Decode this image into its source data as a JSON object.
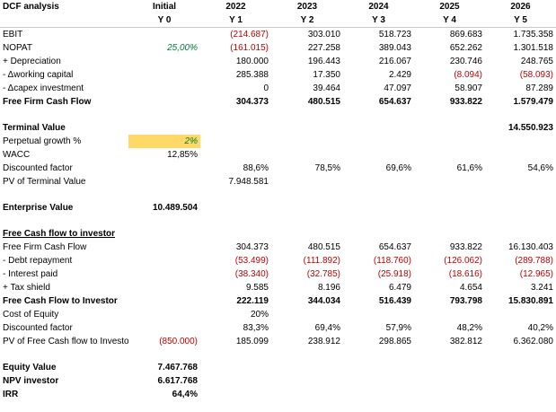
{
  "header": {
    "title": "DCF analysis",
    "cols": [
      {
        "top": "Initial",
        "bottom": "Y 0"
      },
      {
        "top": "2022",
        "bottom": "Y 1"
      },
      {
        "top": "2023",
        "bottom": "Y 2"
      },
      {
        "top": "2024",
        "bottom": "Y 3"
      },
      {
        "top": "2025",
        "bottom": "Y 4"
      },
      {
        "top": "2026",
        "bottom": "Y 5"
      }
    ]
  },
  "rows": {
    "ebit": {
      "label": "EBIT",
      "v": [
        "",
        "(214.687)",
        "303.010",
        "518.723",
        "869.683",
        "1.735.358"
      ]
    },
    "nopat": {
      "label": "NOPAT",
      "v": [
        "25,00%",
        "(161.015)",
        "227.258",
        "389.043",
        "652.262",
        "1.301.518"
      ]
    },
    "dep": {
      "label": " + Depreciation",
      "v": [
        "",
        "180.000",
        "196.443",
        "216.067",
        "230.746",
        "248.765"
      ]
    },
    "wc": {
      "label": " - Δworking capital",
      "v": [
        "",
        "285.388",
        "17.350",
        "2.429",
        "(8.094)",
        "(58.093)"
      ]
    },
    "capex": {
      "label": " - Δcapex investment",
      "v": [
        "",
        "0",
        "39.464",
        "47.097",
        "58.907",
        "87.289"
      ]
    },
    "ffcf": {
      "label": "Free Firm Cash Flow",
      "v": [
        "",
        "304.373",
        "480.515",
        "654.637",
        "933.822",
        "1.579.479"
      ]
    },
    "tv": {
      "label": "Terminal Value",
      "v": [
        "",
        "",
        "",
        "",
        "",
        "14.550.923"
      ]
    },
    "pg": {
      "label": "Perpetual growth %",
      "v": [
        "2%",
        "",
        "",
        "",
        "",
        ""
      ]
    },
    "wacc": {
      "label": "WACC",
      "v": [
        "12,85%",
        "",
        "",
        "",
        "",
        ""
      ]
    },
    "df": {
      "label": "Discounted factor",
      "v": [
        "",
        "88,6%",
        "78,5%",
        "69,6%",
        "61,6%",
        "54,6%"
      ]
    },
    "pvtv": {
      "label": "PV of Terminal Value",
      "v": [
        "",
        "7.948.581",
        "",
        "",
        "",
        ""
      ]
    },
    "ev": {
      "label": "Enterprise Value",
      "v": [
        "10.489.504",
        "",
        "",
        "",
        "",
        ""
      ]
    },
    "fcfi_title": {
      "label": "Free Cash flow to investor"
    },
    "ffcf2": {
      "label": "Free Firm Cash Flow",
      "v": [
        "",
        "304.373",
        "480.515",
        "654.637",
        "933.822",
        "16.130.403"
      ]
    },
    "debt": {
      "label": " - Debt repayment",
      "v": [
        "",
        "(53.499)",
        "(111.892)",
        "(118.760)",
        "(126.062)",
        "(289.788)"
      ]
    },
    "int": {
      "label": " - Interest paid",
      "v": [
        "",
        "(38.340)",
        "(32.785)",
        "(25.918)",
        "(18.616)",
        "(12.965)"
      ]
    },
    "tax": {
      "label": " + Tax shield",
      "v": [
        "",
        "9.585",
        "8.196",
        "6.479",
        "4.654",
        "3.241"
      ]
    },
    "fcfi": {
      "label": "Free Cash Flow to Investor",
      "v": [
        "",
        "222.119",
        "344.034",
        "516.439",
        "793.798",
        "15.830.891"
      ]
    },
    "coe": {
      "label": "Cost of Equity",
      "v": [
        "",
        "20%",
        "",
        "",
        "",
        ""
      ]
    },
    "df2": {
      "label": "Discounted factor",
      "v": [
        "",
        "83,3%",
        "69,4%",
        "57,9%",
        "48,2%",
        "40,2%"
      ]
    },
    "pvfcf": {
      "label": "PV of Free Cash flow to Investor",
      "v": [
        "(850.000)",
        "185.099",
        "238.912",
        "298.865",
        "382.812",
        "6.362.080"
      ]
    },
    "eqv": {
      "label": "Equity Value",
      "v": [
        "7.467.768"
      ]
    },
    "npv": {
      "label": "NPV investor",
      "v": [
        "6.617.768"
      ]
    },
    "irr": {
      "label": "IRR",
      "v": [
        "64,4%"
      ]
    }
  },
  "colors": {
    "negative": "#c00000",
    "input_green": "#007a33",
    "highlight": "#ffd966"
  }
}
